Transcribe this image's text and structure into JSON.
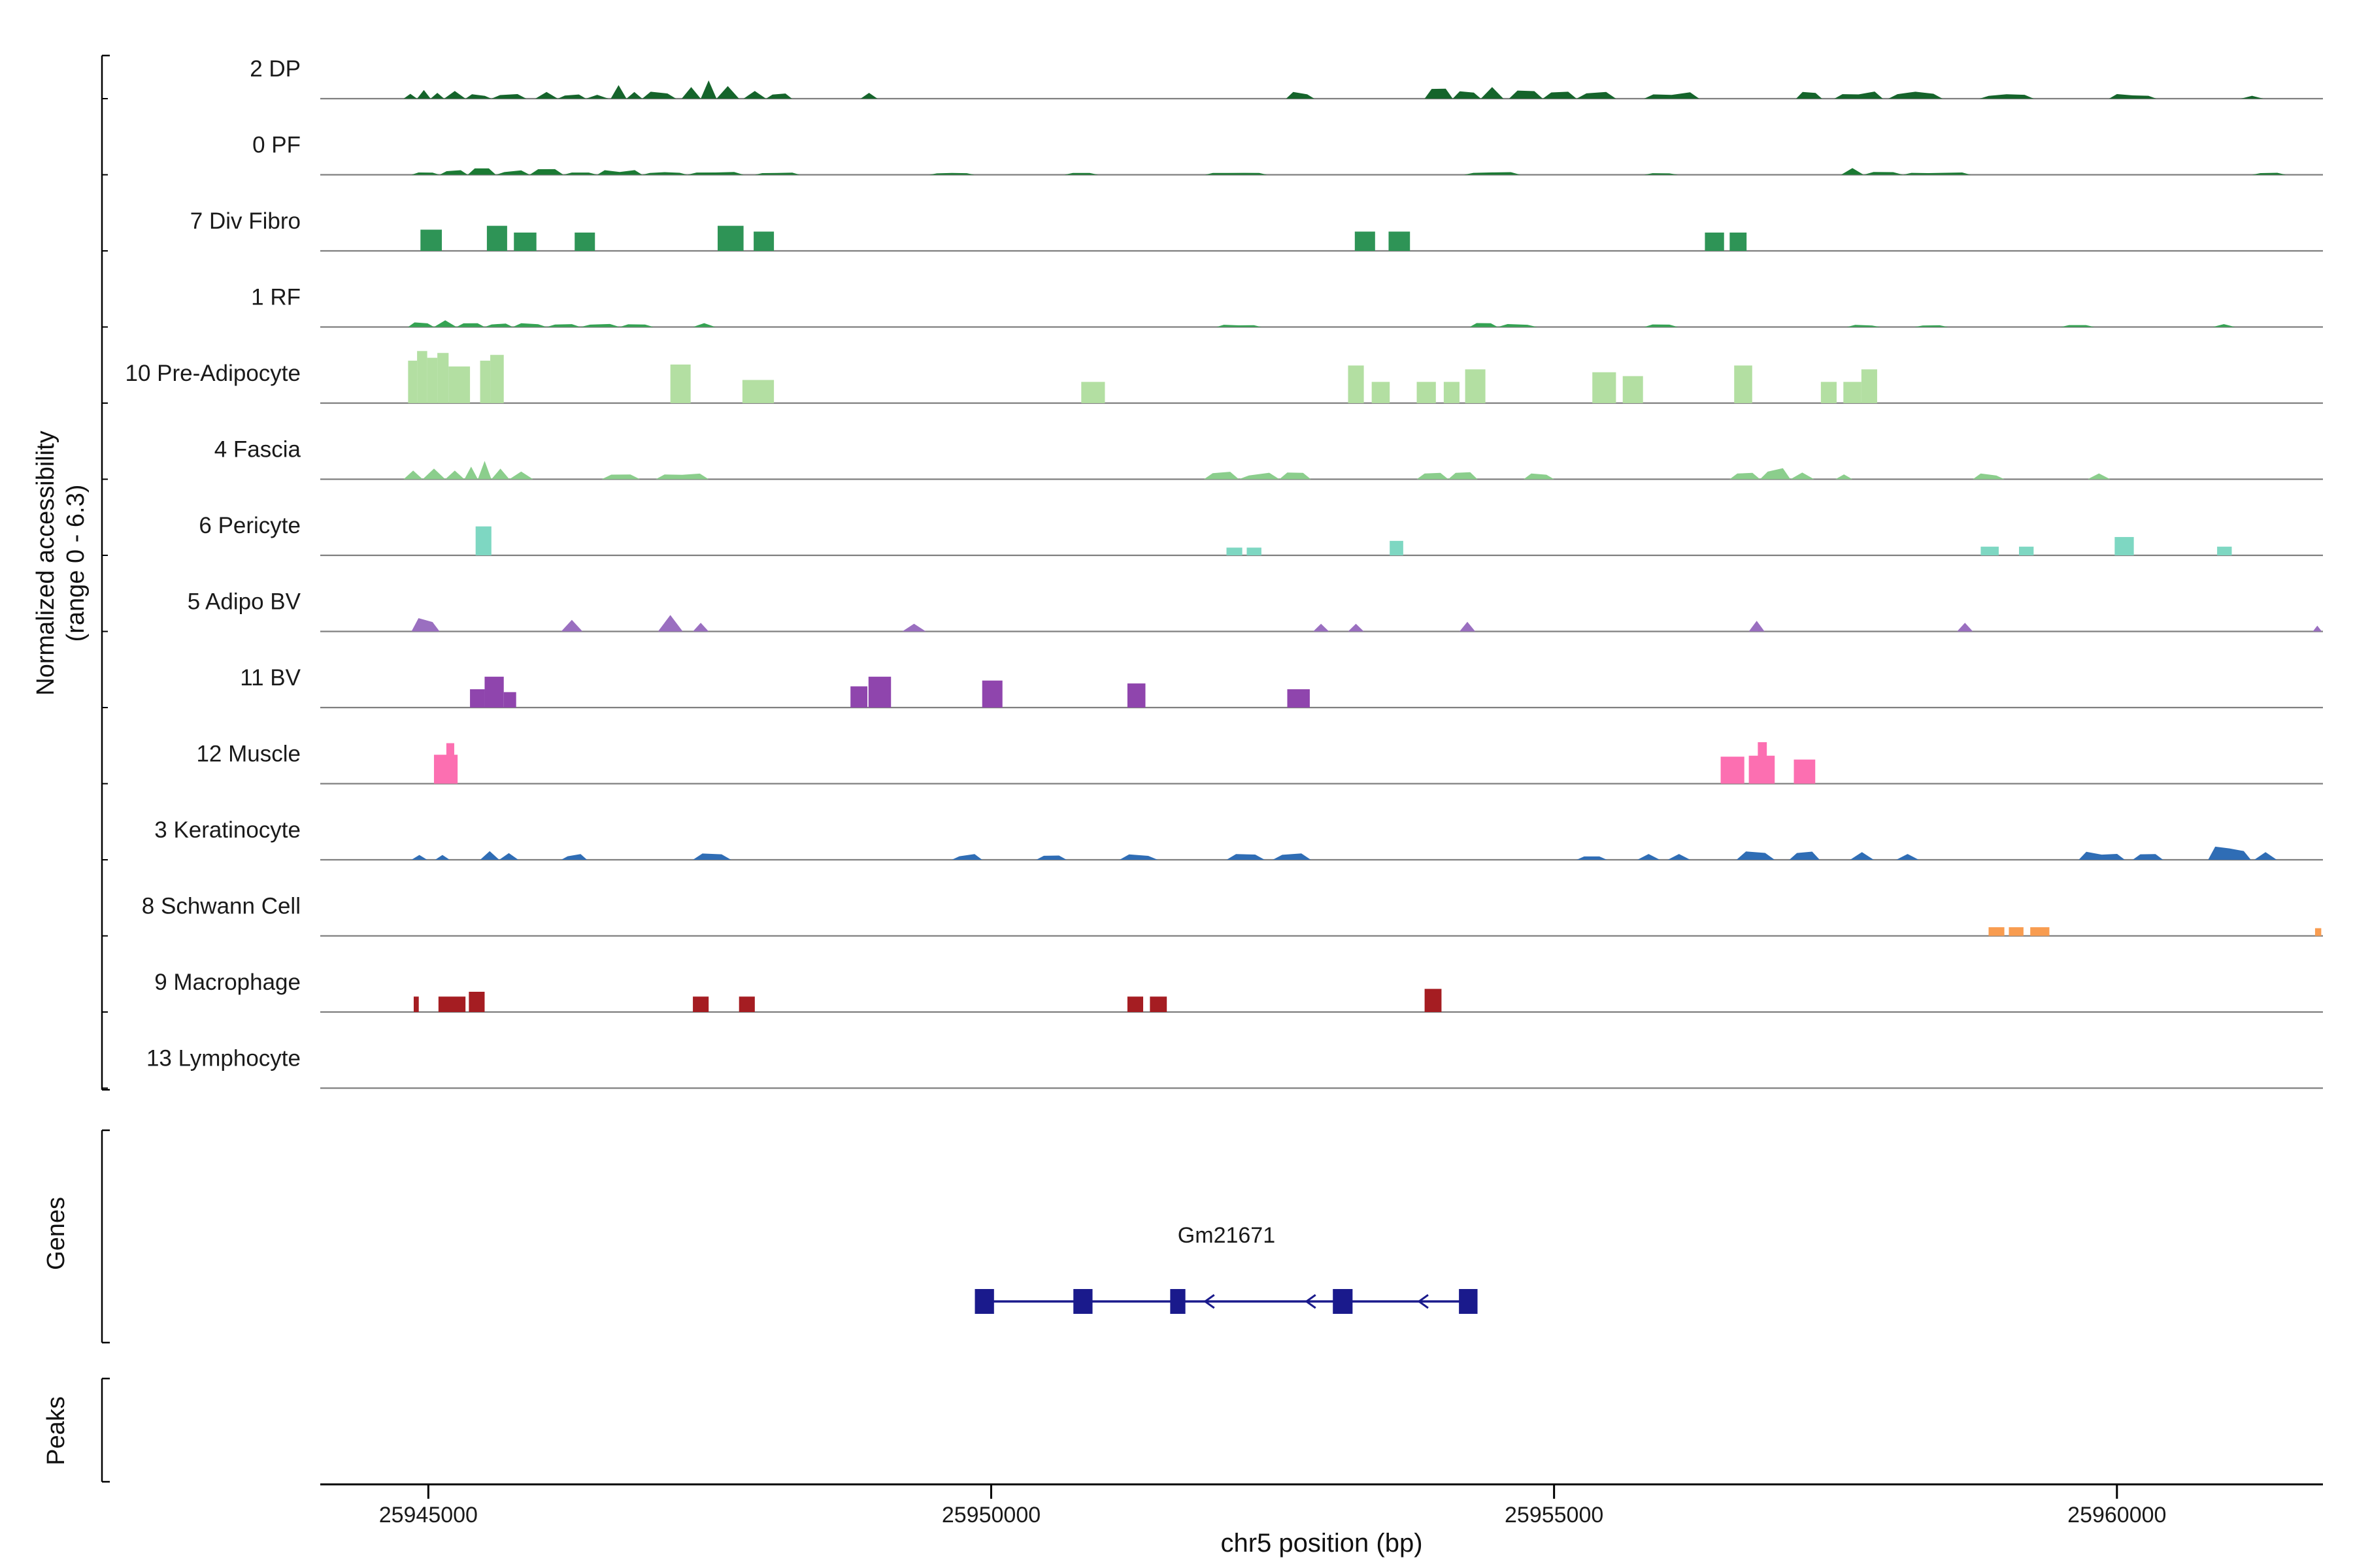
{
  "ui": {
    "y_axis_label_line1": "Normalized accessibility",
    "y_axis_label_line2": "(range 0 - 6.3)",
    "genes_section_label": "Genes",
    "peaks_section_label": "Peaks"
  },
  "chart_data": {
    "type": "area",
    "subtype": "genome-accessibility-tracks",
    "xlabel": "chr5 position (bp)",
    "ylabel": "Normalized accessibility (range 0 - 6.3)",
    "ylim": [
      0,
      6.3
    ],
    "x_range": [
      25944040,
      25961830
    ],
    "x_ticks": [
      25945000,
      25950000,
      25955000,
      25960000
    ],
    "grid": false,
    "tracks": [
      {
        "label": "2 DP",
        "color": "#15642b",
        "style": "jagged",
        "peaks": [
          [
            25944780,
            25944900,
            0.5
          ],
          [
            25944900,
            25945020,
            0.9
          ],
          [
            25945020,
            25945140,
            0.6
          ],
          [
            25945140,
            25945330,
            0.8
          ],
          [
            25945330,
            25945560,
            0.5
          ],
          [
            25945560,
            25945870,
            0.6
          ],
          [
            25945950,
            25946150,
            0.7
          ],
          [
            25946150,
            25946400,
            0.5
          ],
          [
            25946400,
            25946600,
            0.4
          ],
          [
            25946620,
            25946760,
            1.4
          ],
          [
            25946760,
            25946900,
            0.7
          ],
          [
            25946900,
            25947200,
            0.8
          ],
          [
            25947250,
            25947420,
            1.2
          ],
          [
            25947420,
            25947560,
            1.9
          ],
          [
            25947560,
            25947760,
            1.3
          ],
          [
            25947800,
            25948000,
            0.8
          ],
          [
            25948000,
            25948230,
            0.6
          ],
          [
            25948840,
            25948990,
            0.6
          ],
          [
            25952620,
            25952870,
            0.7
          ],
          [
            25953850,
            25954100,
            1.1
          ],
          [
            25954100,
            25954350,
            0.9
          ],
          [
            25954350,
            25954550,
            1.2
          ],
          [
            25954600,
            25954900,
            0.9
          ],
          [
            25954900,
            25955200,
            1.0
          ],
          [
            25955200,
            25955550,
            0.8
          ],
          [
            25955800,
            25956290,
            0.7
          ],
          [
            25957150,
            25957380,
            0.7
          ],
          [
            25957490,
            25957920,
            0.8
          ],
          [
            25957970,
            25958450,
            0.8
          ],
          [
            25958780,
            25959260,
            0.5
          ],
          [
            25959930,
            25960350,
            0.5
          ],
          [
            25961100,
            25961300,
            0.3
          ]
        ]
      },
      {
        "label": "0 PF",
        "color": "#1b7a33",
        "style": "jagged",
        "peaks": [
          [
            25944850,
            25945100,
            0.4
          ],
          [
            25945100,
            25945350,
            0.5
          ],
          [
            25945350,
            25945600,
            0.7
          ],
          [
            25945600,
            25945900,
            0.5
          ],
          [
            25945900,
            25946200,
            0.6
          ],
          [
            25946200,
            25946500,
            0.4
          ],
          [
            25946500,
            25946900,
            0.5
          ],
          [
            25946900,
            25947300,
            0.3
          ],
          [
            25947300,
            25947800,
            0.3
          ],
          [
            25947900,
            25948300,
            0.3
          ],
          [
            25949450,
            25949850,
            0.25
          ],
          [
            25950650,
            25950950,
            0.25
          ],
          [
            25951900,
            25952450,
            0.25
          ],
          [
            25954200,
            25954700,
            0.3
          ],
          [
            25955800,
            25956100,
            0.25
          ],
          [
            25957550,
            25957750,
            0.7
          ],
          [
            25957750,
            25958100,
            0.35
          ],
          [
            25958100,
            25958700,
            0.25
          ],
          [
            25961200,
            25961500,
            0.25
          ]
        ]
      },
      {
        "label": "7 Div Fibro",
        "color": "#2e9456",
        "style": "block",
        "peaks": [
          [
            25944930,
            25945120,
            2.2
          ],
          [
            25945520,
            25945700,
            2.6
          ],
          [
            25945760,
            25945960,
            1.9
          ],
          [
            25946300,
            25946480,
            1.9
          ],
          [
            25947570,
            25947800,
            2.6
          ],
          [
            25947890,
            25948070,
            2.0
          ],
          [
            25953230,
            25953410,
            2.0
          ],
          [
            25953530,
            25953720,
            2.0
          ],
          [
            25956340,
            25956510,
            1.9
          ],
          [
            25956560,
            25956710,
            1.9
          ]
        ]
      },
      {
        "label": "1 RF",
        "color": "#35a353",
        "style": "jagged",
        "peaks": [
          [
            25944820,
            25945050,
            0.5
          ],
          [
            25945050,
            25945250,
            0.7
          ],
          [
            25945250,
            25945500,
            0.5
          ],
          [
            25945500,
            25945750,
            0.4
          ],
          [
            25945750,
            25946050,
            0.5
          ],
          [
            25946050,
            25946350,
            0.4
          ],
          [
            25946350,
            25946700,
            0.35
          ],
          [
            25946700,
            25947000,
            0.3
          ],
          [
            25947350,
            25947550,
            0.4
          ],
          [
            25952000,
            25952400,
            0.3
          ],
          [
            25954250,
            25954500,
            0.5
          ],
          [
            25954500,
            25954850,
            0.4
          ],
          [
            25955800,
            25956100,
            0.3
          ],
          [
            25957600,
            25957900,
            0.25
          ],
          [
            25958200,
            25958500,
            0.25
          ],
          [
            25959500,
            25959800,
            0.25
          ],
          [
            25960850,
            25961050,
            0.3
          ]
        ]
      },
      {
        "label": "10 Pre-Adipocyte",
        "color": "#b3dfa2",
        "style": "block",
        "peaks": [
          [
            25944820,
            25944900,
            4.4
          ],
          [
            25944900,
            25944990,
            5.4
          ],
          [
            25944990,
            25945080,
            4.7
          ],
          [
            25945080,
            25945180,
            5.2
          ],
          [
            25945180,
            25945370,
            3.8
          ],
          [
            25945460,
            25945550,
            4.4
          ],
          [
            25945550,
            25945670,
            5.0
          ],
          [
            25947150,
            25947330,
            4.0
          ],
          [
            25947790,
            25948070,
            2.4
          ],
          [
            25950800,
            25951010,
            2.2
          ],
          [
            25953170,
            25953310,
            3.9
          ],
          [
            25953380,
            25953540,
            2.2
          ],
          [
            25953780,
            25953950,
            2.2
          ],
          [
            25954020,
            25954160,
            2.2
          ],
          [
            25954210,
            25954390,
            3.5
          ],
          [
            25955340,
            25955550,
            3.2
          ],
          [
            25955610,
            25955790,
            2.8
          ],
          [
            25956600,
            25956760,
            3.9
          ],
          [
            25957370,
            25957510,
            2.2
          ],
          [
            25957570,
            25957730,
            2.2
          ],
          [
            25957730,
            25957870,
            3.5
          ]
        ]
      },
      {
        "label": "4 Fascia",
        "color": "#8bce8c",
        "style": "jagged",
        "peaks": [
          [
            25944780,
            25944950,
            0.9
          ],
          [
            25944950,
            25945150,
            1.1
          ],
          [
            25945150,
            25945320,
            0.9
          ],
          [
            25945320,
            25945440,
            1.3
          ],
          [
            25945440,
            25945560,
            1.9
          ],
          [
            25945560,
            25945720,
            1.1
          ],
          [
            25945720,
            25945930,
            0.8
          ],
          [
            25946540,
            25946880,
            0.5
          ],
          [
            25947020,
            25947490,
            0.6
          ],
          [
            25951890,
            25952200,
            0.8
          ],
          [
            25952200,
            25952560,
            0.7
          ],
          [
            25952560,
            25952840,
            0.8
          ],
          [
            25953780,
            25954060,
            0.9
          ],
          [
            25954060,
            25954320,
            1.0
          ],
          [
            25954730,
            25955000,
            0.6
          ],
          [
            25956560,
            25956830,
            0.9
          ],
          [
            25956830,
            25957100,
            1.2
          ],
          [
            25957100,
            25957310,
            0.7
          ],
          [
            25957500,
            25957650,
            0.5
          ],
          [
            25958720,
            25959000,
            0.6
          ],
          [
            25959740,
            25959940,
            0.6
          ]
        ]
      },
      {
        "label": "6 Pericyte",
        "color": "#7ed7c2",
        "style": "block",
        "peaks": [
          [
            25945420,
            25945560,
            3.0
          ],
          [
            25952090,
            25952230,
            0.8
          ],
          [
            25952270,
            25952400,
            0.8
          ],
          [
            25953540,
            25953660,
            1.5
          ],
          [
            25958790,
            25958950,
            0.9
          ],
          [
            25959130,
            25959260,
            0.9
          ],
          [
            25959980,
            25960150,
            1.9
          ],
          [
            25960890,
            25961020,
            0.9
          ]
        ]
      },
      {
        "label": "5 Adipo BV",
        "color": "#9a6fc0",
        "style": "jagged",
        "peaks": [
          [
            25944850,
            25945100,
            1.4
          ],
          [
            25946180,
            25946370,
            1.2
          ],
          [
            25947040,
            25947260,
            1.7
          ],
          [
            25947350,
            25947490,
            0.9
          ],
          [
            25949210,
            25949420,
            0.8
          ],
          [
            25952860,
            25953000,
            0.8
          ],
          [
            25953170,
            25953310,
            0.8
          ],
          [
            25954160,
            25954300,
            1.0
          ],
          [
            25956730,
            25956870,
            1.1
          ],
          [
            25958580,
            25958720,
            0.9
          ],
          [
            25961740,
            25961820,
            0.6
          ]
        ]
      },
      {
        "label": "11 BV",
        "color": "#8f45ad",
        "style": "block",
        "peaks": [
          [
            25945370,
            25945500,
            1.9
          ],
          [
            25945500,
            25945670,
            3.2
          ],
          [
            25945670,
            25945780,
            1.6
          ],
          [
            25948750,
            25948900,
            2.2
          ],
          [
            25948910,
            25949110,
            3.2
          ],
          [
            25949920,
            25950100,
            2.8
          ],
          [
            25951210,
            25951370,
            2.5
          ],
          [
            25952630,
            25952830,
            1.9
          ]
        ]
      },
      {
        "label": "12 Muscle",
        "color": "#fc6fb1",
        "style": "block",
        "peaks": [
          [
            25945050,
            25945260,
            3.0
          ],
          [
            25945160,
            25945230,
            4.2
          ],
          [
            25956480,
            25956690,
            2.8
          ],
          [
            25956730,
            25956960,
            2.9
          ],
          [
            25956810,
            25956890,
            4.3
          ],
          [
            25957130,
            25957320,
            2.5
          ]
        ]
      },
      {
        "label": "3 Keratinocyte",
        "color": "#2f6db5",
        "style": "jagged",
        "peaks": [
          [
            25944850,
            25944990,
            0.5
          ],
          [
            25945060,
            25945190,
            0.5
          ],
          [
            25945460,
            25945630,
            0.9
          ],
          [
            25945630,
            25945800,
            0.7
          ],
          [
            25946180,
            25946410,
            0.6
          ],
          [
            25947350,
            25947690,
            0.8
          ],
          [
            25949650,
            25949920,
            0.6
          ],
          [
            25950400,
            25950670,
            0.5
          ],
          [
            25951140,
            25951480,
            0.6
          ],
          [
            25952090,
            25952430,
            0.6
          ],
          [
            25952500,
            25952840,
            0.8
          ],
          [
            25955200,
            25955470,
            0.6
          ],
          [
            25955740,
            25955940,
            0.6
          ],
          [
            25956010,
            25956210,
            0.6
          ],
          [
            25956620,
            25956960,
            1.1
          ],
          [
            25957090,
            25957360,
            0.9
          ],
          [
            25957630,
            25957840,
            0.8
          ],
          [
            25958040,
            25958240,
            0.6
          ],
          [
            25959660,
            25960070,
            0.9
          ],
          [
            25960140,
            25960410,
            0.8
          ],
          [
            25960810,
            25961190,
            1.4
          ],
          [
            25961220,
            25961420,
            0.8
          ]
        ]
      },
      {
        "label": "8 Schwann Cell",
        "color": "#f89c50",
        "style": "block",
        "peaks": [
          [
            25958860,
            25959000,
            0.9
          ],
          [
            25959040,
            25959170,
            0.9
          ],
          [
            25959230,
            25959400,
            0.9
          ],
          [
            25961760,
            25961815,
            0.8
          ]
        ]
      },
      {
        "label": "9 Macrophage",
        "color": "#a51d22",
        "style": "block",
        "peaks": [
          [
            25944870,
            25944915,
            1.6
          ],
          [
            25945090,
            25945330,
            1.6
          ],
          [
            25945360,
            25945500,
            2.1
          ],
          [
            25947350,
            25947490,
            1.6
          ],
          [
            25947760,
            25947900,
            1.6
          ],
          [
            25951210,
            25951350,
            1.6
          ],
          [
            25951410,
            25951560,
            1.6
          ],
          [
            25953850,
            25954000,
            2.4
          ]
        ]
      },
      {
        "label": "13 Lymphocyte",
        "color": "#b8b8b8",
        "style": "block",
        "peaks": []
      }
    ],
    "genes": {
      "label": "Gm21671",
      "label_bp": 25952090,
      "color": "#1a1a8c",
      "strand": "-",
      "line": [
        25949900,
        25954250
      ],
      "exons": [
        [
          25949855,
          25950025
        ],
        [
          25950730,
          25950900
        ],
        [
          25951590,
          25951725
        ],
        [
          25953035,
          25953210
        ],
        [
          25954155,
          25954320
        ]
      ],
      "arrow_positions": [
        25951900,
        25952800,
        25953800
      ]
    },
    "peaks_track": {
      "features": []
    }
  }
}
